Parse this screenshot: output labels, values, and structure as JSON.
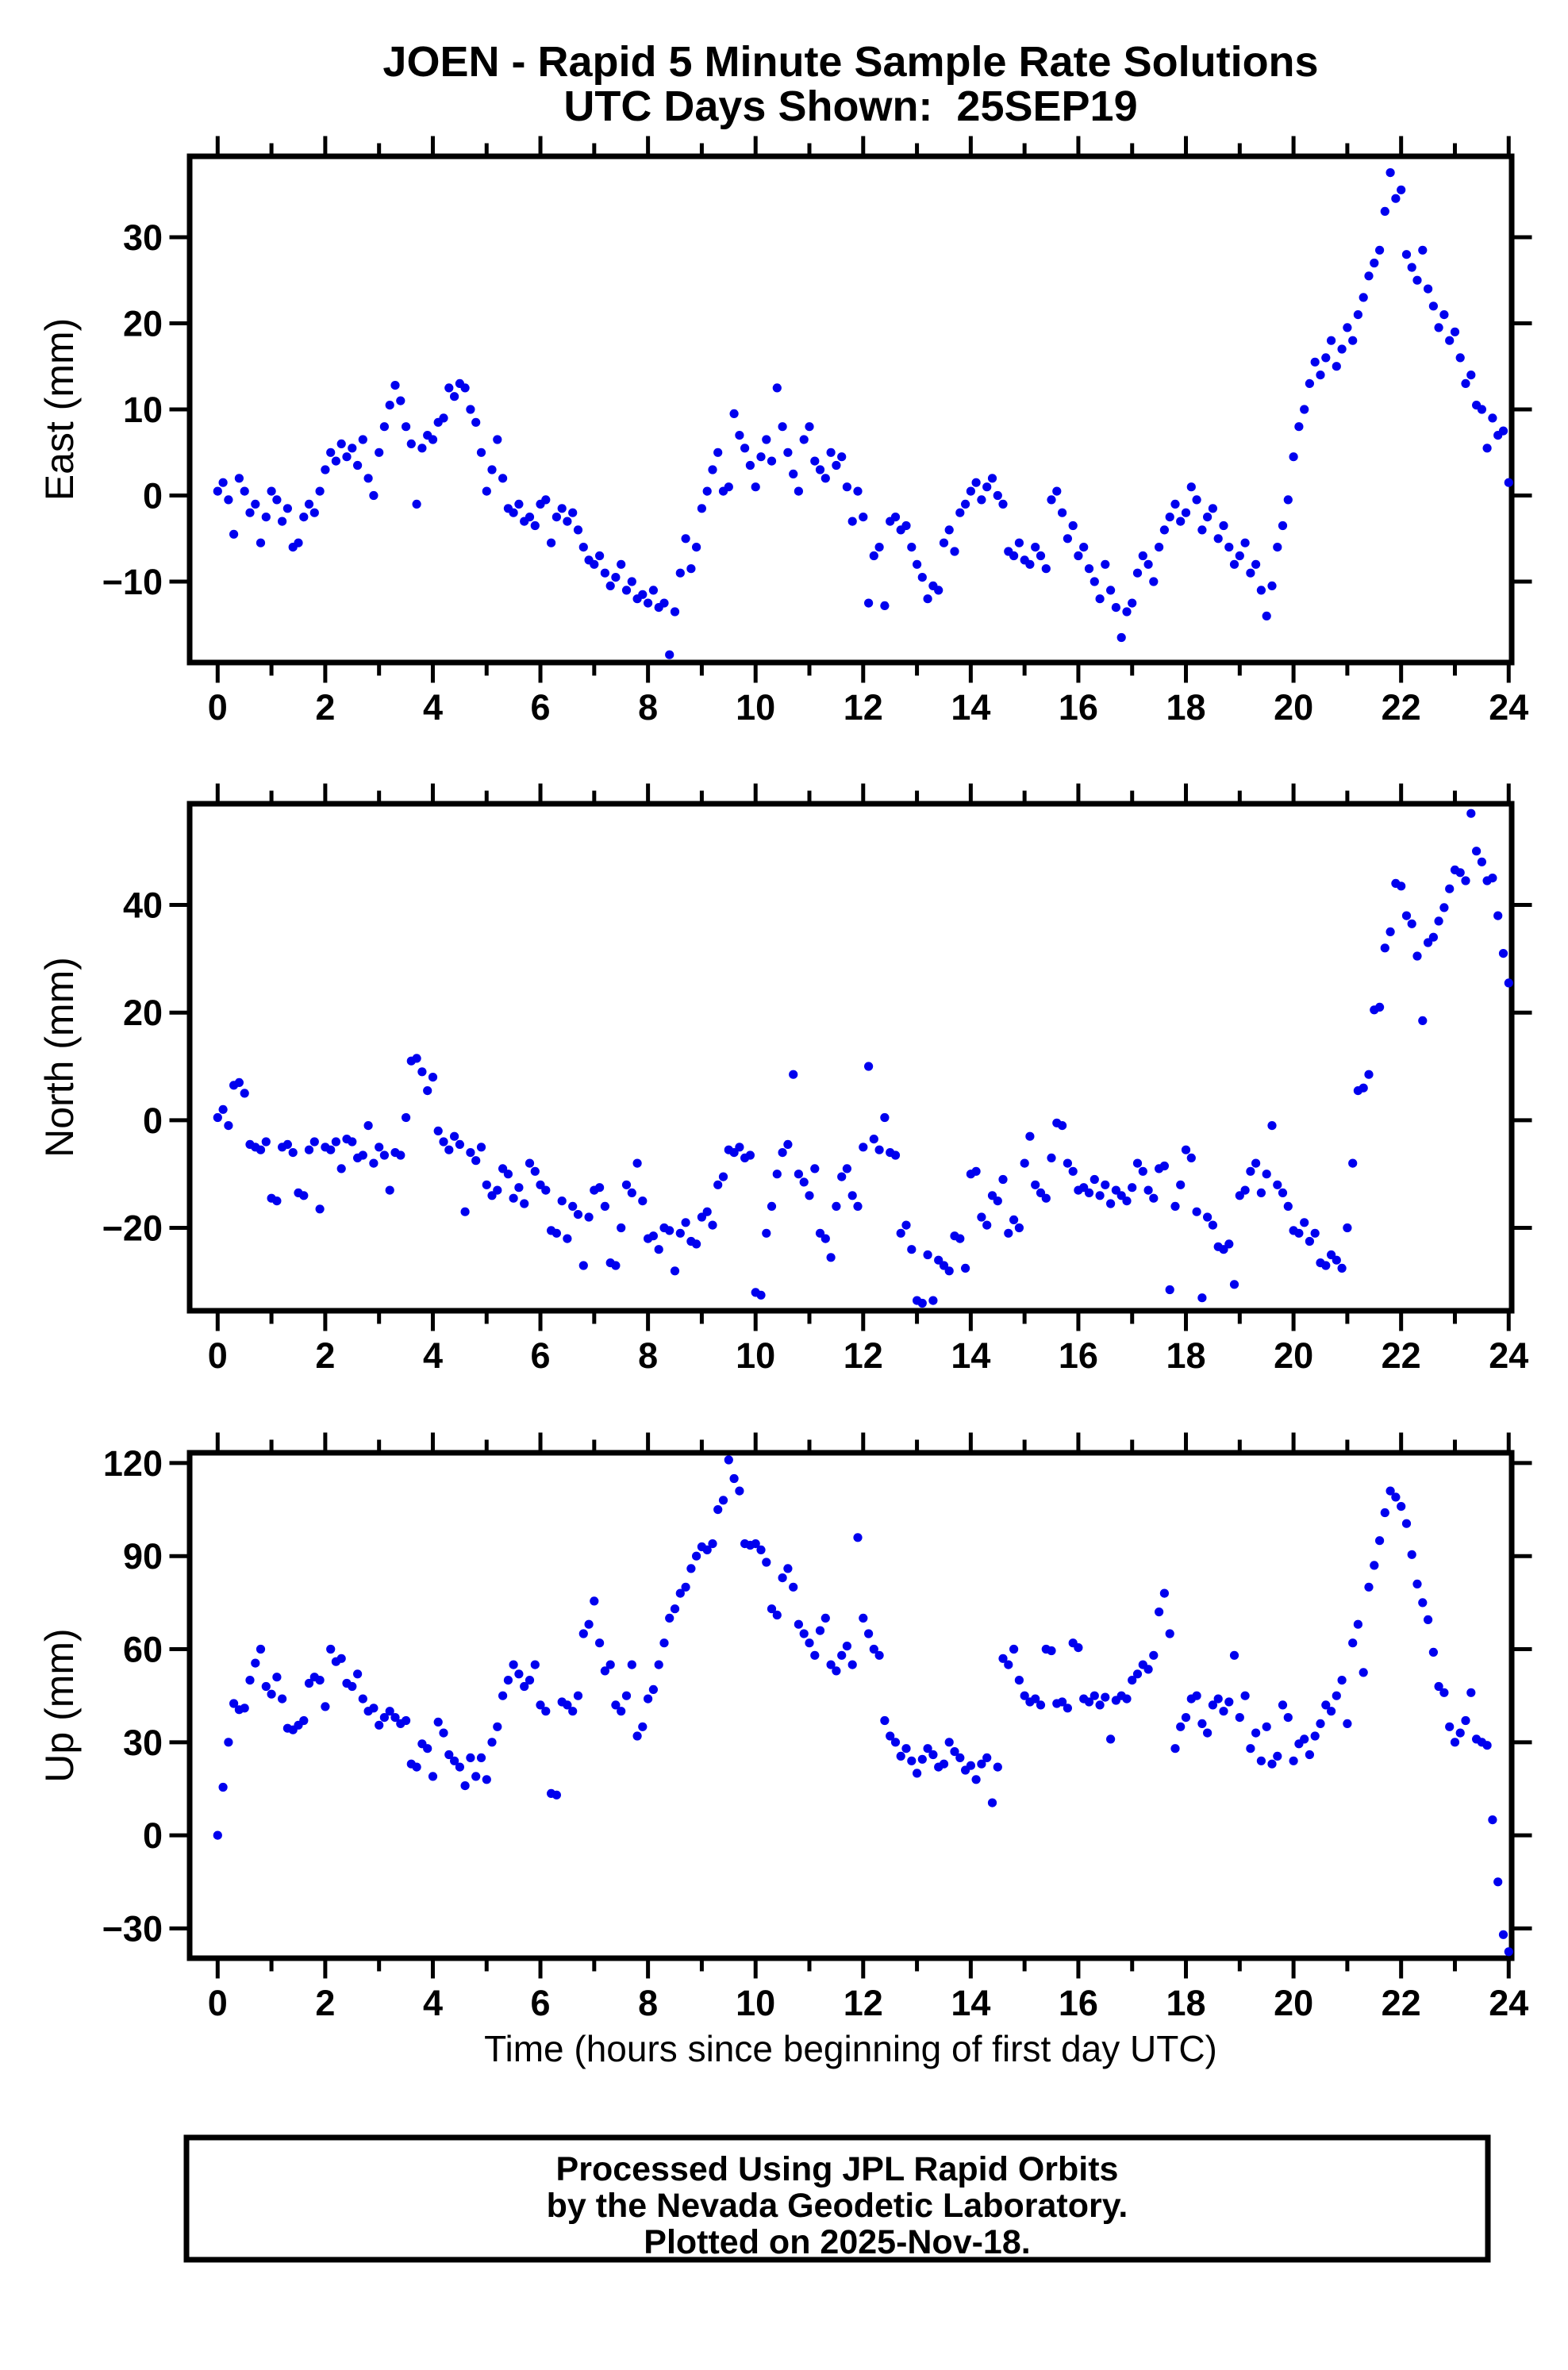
{
  "title": {
    "line1": "JOEN - Rapid 5 Minute Sample Rate Solutions",
    "line2": "UTC Days Shown:  25SEP19"
  },
  "xlabel": "Time (hours since beginning of first day UTC)",
  "footer": {
    "line1": "Processed Using JPL Rapid Orbits",
    "line2": "by the Nevada Geodetic Laboratory.",
    "line3": "Plotted on 2025-Nov-18."
  },
  "style": {
    "marker_color": "#0000ee",
    "axis_color": "#000000",
    "background": "#ffffff"
  },
  "chart_data": [
    {
      "id": "east",
      "type": "scatter",
      "station": "JOEN",
      "ylabel": "East (mm)",
      "xlim": [
        -0.5,
        24.07
      ],
      "ylim": [
        -19.4,
        39.4
      ],
      "yticks": [
        -10,
        0,
        10,
        20,
        30
      ],
      "xticks_major": [
        0,
        2,
        4,
        6,
        8,
        10,
        12,
        14,
        16,
        18,
        20,
        22,
        24
      ],
      "xticks_minor": [
        1,
        3,
        5,
        7,
        9,
        11,
        13,
        15,
        17,
        19,
        21,
        23
      ],
      "grid": false,
      "x_start_hours": 0,
      "x_step_hours": 0.1,
      "values": [
        0.5,
        1.5,
        -0.5,
        -4.5,
        2,
        0.5,
        -2,
        -1,
        -5.5,
        -2.5,
        0.5,
        -0.5,
        -3,
        -1.5,
        -6,
        -5.5,
        -2.5,
        -1,
        -2,
        0.5,
        3,
        5,
        4,
        6,
        4.5,
        5.5,
        3.5,
        6.5,
        2,
        0,
        5,
        8,
        10.5,
        12.8,
        11,
        8,
        6,
        -1,
        5.5,
        7,
        6.5,
        8.5,
        9,
        12.5,
        11.5,
        13,
        12.5,
        10,
        8.5,
        5,
        0.5,
        3,
        6.5,
        2,
        -1.5,
        -2,
        -1,
        -3,
        -2.5,
        -3.5,
        -1,
        -0.5,
        -5.5,
        -2.5,
        -1.5,
        -3,
        -2,
        -4,
        -6,
        -7.5,
        -8,
        -7,
        -9,
        -10.5,
        -9.5,
        -8,
        -11,
        -10,
        -12,
        -11.5,
        -12.5,
        -11,
        -13,
        -12.5,
        -18.5,
        -13.5,
        -9,
        -5,
        -8.5,
        -6,
        -1.5,
        0.5,
        3,
        5,
        0.5,
        1,
        9.5,
        7,
        5.5,
        3.5,
        1,
        4.5,
        6.5,
        4,
        12.5,
        8,
        5,
        2.5,
        0.5,
        6.5,
        8,
        4,
        3,
        2,
        5,
        3.5,
        4.5,
        1,
        -3,
        0.5,
        -2.5,
        -12.5,
        -7,
        -6,
        -12.8,
        -3,
        -2.5,
        -4,
        -3.5,
        -6,
        -8,
        -9.5,
        -12,
        -10.5,
        -11,
        -5.5,
        -4,
        -6.5,
        -2,
        -1,
        0.5,
        1.5,
        -0.5,
        1,
        2,
        0,
        -1,
        -6.5,
        -7,
        -5.5,
        -7.5,
        -8,
        -6,
        -7,
        -8.5,
        -0.5,
        0.5,
        -2,
        -5,
        -3.5,
        -7,
        -6,
        -8.5,
        -10,
        -12,
        -8,
        -11,
        -13,
        -16.5,
        -13.5,
        -12.5,
        -9,
        -7,
        -8,
        -10,
        -6,
        -4,
        -2.5,
        -1,
        -3,
        -2,
        1,
        -0.5,
        -4,
        -2.5,
        -1.5,
        -5,
        -3.5,
        -6,
        -8,
        -7,
        -5.5,
        -9,
        -8,
        -11,
        -14,
        -10.5,
        -6,
        -3.5,
        -0.5,
        4.5,
        8,
        10,
        13,
        15.5,
        14,
        16,
        18,
        15,
        17,
        19.5,
        18,
        21,
        23,
        25.5,
        27,
        28.5,
        33,
        37.5,
        34.5,
        35.5,
        28,
        26.5,
        25,
        28.5,
        24,
        22,
        19.5,
        21,
        18,
        19,
        16,
        13,
        14,
        10.5,
        10,
        5.5,
        9,
        7,
        7.5,
        1.5
      ]
    },
    {
      "id": "north",
      "type": "scatter",
      "station": "JOEN",
      "ylabel": "North (mm)",
      "xlim": [
        -0.5,
        24.07
      ],
      "ylim": [
        -35.4,
        58.8
      ],
      "yticks": [
        -20,
        0,
        20,
        40
      ],
      "xticks_major": [
        0,
        2,
        4,
        6,
        8,
        10,
        12,
        14,
        16,
        18,
        20,
        22,
        24
      ],
      "xticks_minor": [
        1,
        3,
        5,
        7,
        9,
        11,
        13,
        15,
        17,
        19,
        21,
        23
      ],
      "grid": false,
      "x_start_hours": 0,
      "x_step_hours": 0.1,
      "values": [
        0.5,
        2,
        -1,
        6.5,
        7,
        5,
        -4.5,
        -5,
        -5.5,
        -4,
        -14.5,
        -15,
        -5,
        -4.5,
        -6,
        -13.5,
        -14,
        -5.5,
        -4,
        -16.5,
        -5,
        -5.5,
        -4,
        -9,
        -3.5,
        -4,
        -7,
        -6.5,
        -1,
        -8,
        -5,
        -6.5,
        -13,
        -6,
        -6.5,
        0.5,
        11,
        11.5,
        9,
        5.5,
        8,
        -2,
        -4,
        -5.5,
        -3,
        -4.5,
        -17,
        -6,
        -7.5,
        -5,
        -12,
        -14,
        -13,
        -9,
        -10,
        -14.5,
        -12.5,
        -15.5,
        -8,
        -9.5,
        -12,
        -13,
        -20.5,
        -21,
        -15,
        -22,
        -16,
        -17.5,
        -27,
        -18,
        -13,
        -12.5,
        -16,
        -26.5,
        -27,
        -20,
        -12,
        -13.5,
        -8,
        -15,
        -22,
        -21.5,
        -24,
        -20,
        -20.5,
        -28,
        -21,
        -19,
        -22.5,
        -23,
        -18,
        -17,
        -19.5,
        -12,
        -10.5,
        -5.5,
        -6,
        -5,
        -7,
        -6.5,
        -32,
        -32.5,
        -21,
        -16,
        -10,
        -6,
        -4.5,
        8.5,
        -10,
        -11.5,
        -14,
        -9,
        -21,
        -22,
        -25.5,
        -16,
        -10.5,
        -9,
        -14,
        -16,
        -5,
        10,
        -3.5,
        -5.5,
        0.5,
        -6,
        -6.5,
        -21,
        -19.5,
        -24,
        -33.5,
        -34,
        -25,
        -33.5,
        -26,
        -27,
        -28,
        -21.5,
        -22,
        -27.5,
        -10,
        -9.5,
        -18,
        -19.5,
        -14,
        -15,
        -11,
        -21,
        -18.5,
        -20,
        -8,
        -3,
        -12,
        -13.5,
        -14.5,
        -7,
        -0.5,
        -1,
        -8,
        -9.5,
        -13,
        -12.5,
        -13.5,
        -11,
        -14,
        -12,
        -15.5,
        -13,
        -14,
        -15,
        -12.5,
        -8,
        -9.5,
        -13,
        -14.5,
        -9,
        -8.5,
        -31.5,
        -16,
        -12,
        -5.5,
        -7,
        -17,
        -33,
        -18,
        -19.5,
        -23.5,
        -24,
        -23,
        -30.5,
        -14,
        -13,
        -9.5,
        -8,
        -13.5,
        -10,
        -1,
        -12,
        -13.5,
        -16,
        -20.5,
        -21,
        -19,
        -22.5,
        -21,
        -26.5,
        -27,
        -25,
        -26,
        -27.5,
        -20,
        -8,
        5.5,
        6,
        8.5,
        20.5,
        21,
        32,
        35,
        44,
        43.5,
        38,
        36.5,
        30.5,
        18.5,
        33,
        34,
        37,
        39.5,
        43,
        46.5,
        46,
        44.5,
        57,
        50,
        48,
        44.5,
        45,
        38,
        31,
        25.5
      ]
    },
    {
      "id": "up",
      "type": "scatter",
      "station": "JOEN",
      "ylabel": "Up (mm)",
      "xlim": [
        -0.5,
        24.07
      ],
      "ylim": [
        -39.6,
        123.3
      ],
      "yticks": [
        -30,
        0,
        30,
        60,
        90,
        120
      ],
      "xticks_major": [
        0,
        2,
        4,
        6,
        8,
        10,
        12,
        14,
        16,
        18,
        20,
        22,
        24
      ],
      "xticks_minor": [
        1,
        3,
        5,
        7,
        9,
        11,
        13,
        15,
        17,
        19,
        21,
        23
      ],
      "grid": false,
      "x_start_hours": 0,
      "x_step_hours": 0.1,
      "values": [
        0,
        15.5,
        30,
        42.5,
        40.5,
        41,
        50,
        55.5,
        60,
        48,
        45.5,
        51,
        44,
        34.5,
        34,
        35.5,
        37,
        49,
        51,
        50,
        41.5,
        60,
        56,
        57,
        49,
        48,
        52,
        44,
        40,
        41,
        35.5,
        38,
        40,
        38,
        36,
        37,
        23,
        22,
        29.5,
        28,
        19,
        36.5,
        33,
        26,
        24,
        22,
        16,
        25,
        19,
        25,
        18,
        30,
        35,
        45,
        50,
        55,
        52,
        48,
        50,
        55,
        42,
        40,
        13.5,
        13,
        43,
        42,
        40,
        45,
        65,
        68,
        75.5,
        62,
        53,
        55,
        42,
        40,
        45,
        55,
        32,
        35,
        44,
        47,
        55,
        62,
        70,
        73,
        78,
        80,
        86,
        90,
        93,
        92,
        94,
        105,
        108,
        121,
        115,
        111,
        94,
        93.5,
        94,
        92,
        88,
        73,
        71,
        83,
        86,
        80,
        68,
        65,
        62,
        58,
        66,
        70,
        55,
        53,
        58,
        61,
        55,
        96,
        70,
        65,
        60,
        58,
        37,
        32,
        30,
        25.5,
        28,
        24,
        20,
        24.5,
        28,
        26,
        22,
        23,
        30,
        27,
        25,
        21,
        22.5,
        18,
        23,
        25,
        10.5,
        22,
        57,
        55,
        60,
        50,
        45,
        43,
        44,
        42,
        60,
        59.5,
        42.5,
        43,
        41,
        62,
        60.5,
        44,
        43,
        45,
        42,
        44.5,
        31,
        43.5,
        45,
        44,
        50,
        52,
        55,
        53.5,
        58,
        72,
        78,
        65,
        28,
        35,
        38,
        44,
        45,
        36,
        33,
        42,
        44,
        40,
        43,
        58,
        38,
        45,
        28,
        33,
        24,
        35,
        23,
        25.5,
        42,
        38,
        24,
        29.5,
        31,
        26,
        32,
        36,
        42,
        40,
        45,
        50,
        36,
        62,
        68,
        52.5,
        80,
        87,
        95,
        104,
        111,
        109,
        106,
        100.5,
        90.5,
        81,
        75,
        69.5,
        59,
        48,
        46,
        35,
        30,
        33,
        37,
        46,
        31,
        30,
        29,
        5,
        -15,
        -32,
        -37.5
      ]
    }
  ]
}
